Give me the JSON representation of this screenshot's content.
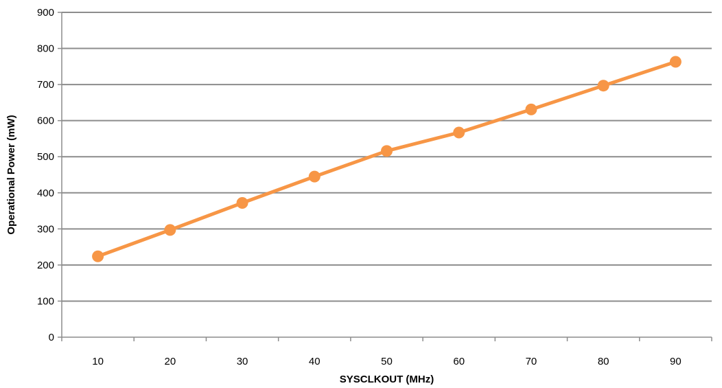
{
  "chart_data": {
    "type": "line",
    "title": "",
    "xlabel": "SYSCLKOUT (MHz)",
    "ylabel": "Operational Power (mW)",
    "categories": [
      "10",
      "20",
      "30",
      "40",
      "50",
      "60",
      "70",
      "80",
      "90"
    ],
    "ylim": [
      0,
      900
    ],
    "yticks": [
      "0",
      "100",
      "200",
      "300",
      "400",
      "500",
      "600",
      "700",
      "800",
      "900"
    ],
    "grid": true,
    "legend": "none",
    "series": [
      {
        "color": "#F79646",
        "values": [
          224,
          297,
          372,
          445,
          516,
          567,
          631,
          697,
          763
        ]
      }
    ]
  }
}
